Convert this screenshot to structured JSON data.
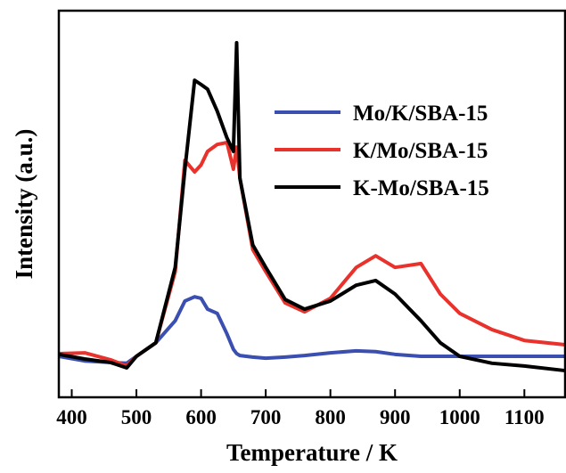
{
  "chart_data": {
    "type": "line",
    "xlabel": "Temperature / K",
    "ylabel": "Intensity (a.u.)",
    "x": [
      380,
      420,
      460,
      485,
      500,
      530,
      560,
      575,
      590,
      600,
      610,
      625,
      640,
      650,
      655,
      660,
      680,
      700,
      730,
      760,
      800,
      840,
      870,
      900,
      940,
      970,
      1000,
      1050,
      1100,
      1163
    ],
    "series": [
      {
        "name": "Mo/K/SBA-15",
        "color": "#3b4fb0",
        "values": [
          10.6,
          9.4,
          9.0,
          8.8,
          10.6,
          14.1,
          19.8,
          24.9,
          26.0,
          25.6,
          22.8,
          21.7,
          16.4,
          12.4,
          11.3,
          10.8,
          10.4,
          10.1,
          10.4,
          10.8,
          11.5,
          12.0,
          11.8,
          11.1,
          10.6,
          10.6,
          10.6,
          10.6,
          10.6,
          10.6
        ]
      },
      {
        "name": "K/Mo/SBA-15",
        "color": "#e8322b",
        "values": [
          11.3,
          11.5,
          9.7,
          8.1,
          10.6,
          14.1,
          32.5,
          61.3,
          58.3,
          60.1,
          63.6,
          65.4,
          65.9,
          59.0,
          64.7,
          56.7,
          38.2,
          32.5,
          24.4,
          22.1,
          25.6,
          33.6,
          36.6,
          33.6,
          34.6,
          26.7,
          21.7,
          17.5,
          14.7,
          13.6
        ]
      },
      {
        "name": "K-Mo/SBA-15",
        "color": "#000000",
        "values": [
          11.1,
          9.9,
          9.0,
          7.6,
          10.6,
          14.1,
          33.6,
          59.0,
          82.0,
          80.9,
          79.7,
          74.0,
          67.1,
          63.6,
          91.7,
          56.7,
          39.4,
          33.6,
          25.3,
          22.8,
          24.9,
          29.0,
          30.2,
          26.7,
          19.8,
          14.1,
          10.6,
          8.8,
          8.1,
          6.9
        ]
      }
    ],
    "xlim": [
      380,
      1163
    ],
    "xticks": [
      400,
      500,
      600,
      700,
      800,
      900,
      1000,
      1100
    ],
    "ylim": [
      0,
      100
    ],
    "legend": "upper right"
  }
}
